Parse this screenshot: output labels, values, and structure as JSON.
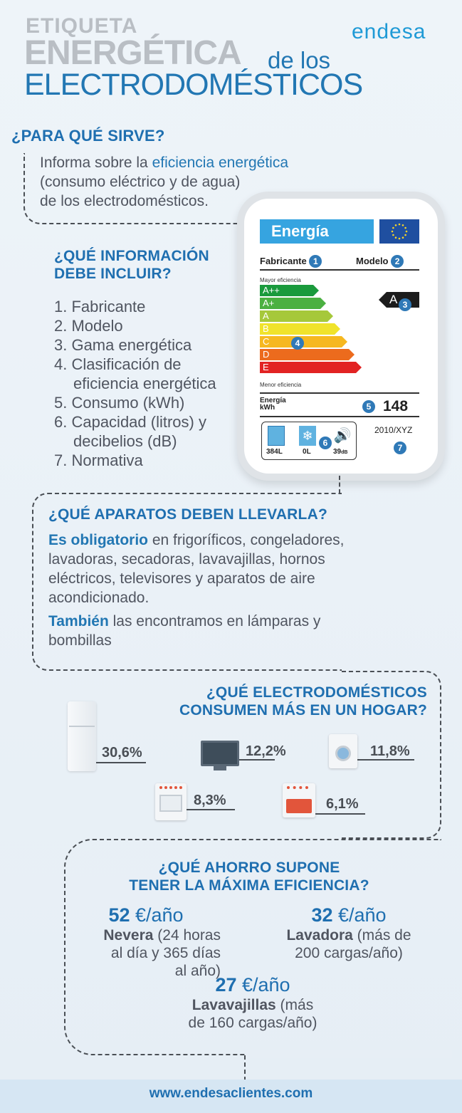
{
  "header": {
    "line1": "ETIQUETA",
    "line2": "ENERGÉTICA",
    "line2b": "de los",
    "line3": "ELECTRODOMÉSTICOS",
    "brand": "endesa"
  },
  "s1": {
    "title": "¿PARA QUÉ SIRVE?",
    "t1": "Informa sobre la ",
    "t1b": "eficiencia energética",
    "t2": "(consumo eléctrico y de agua)",
    "t3": "de los electrodomésticos."
  },
  "label": {
    "title": "Energía",
    "fabricante": "Fabricante",
    "modelo": "Modelo",
    "mayor": "Mayor eficiencia",
    "menor": "Menor eficiencia",
    "classes": [
      "A++",
      "A+",
      "A",
      "B",
      "C",
      "D",
      "E"
    ],
    "class_colors": [
      "#1a9a3c",
      "#4bb041",
      "#a6c83a",
      "#f0e32b",
      "#f6b820",
      "#ec6b1d",
      "#e22323"
    ],
    "rating": "A",
    "energia": "Energía",
    "kwh": "kWh",
    "consumo": "148",
    "norma": "2010/XYZ",
    "vol1": "384",
    "vol1u": "L",
    "vol2": "0",
    "vol2u": "L",
    "db": "39",
    "dbu": "dB",
    "n1": "1",
    "n2": "2",
    "n3": "3",
    "n4": "4",
    "n5": "5",
    "n6": "6",
    "n7": "7"
  },
  "s2": {
    "title1": "¿QUÉ INFORMACIÓN",
    "title2": "DEBE INCLUIR?",
    "items": [
      "1. Fabricante",
      "2. Modelo",
      "3. Gama energética",
      "4. Clasificación de",
      "eficiencia energética",
      "5. Consumo (kWh)",
      "6. Capacidad (litros) y",
      "decibelios (dB)",
      "7. Normativa"
    ]
  },
  "s3": {
    "title": "¿QUÉ APARATOS DEBEN LLEVARLA?",
    "p1b": "Es obligatorio",
    "p1a": " en frigoríficos, congeladores,",
    "p1c": "lavadoras, secadoras, lavavajillas, hornos",
    "p1d": "eléctricos, televisores y aparatos de aire",
    "p1e": "acondicionado.",
    "p2b": "También",
    "p2a": " las encontramos en lámparas y",
    "p2c": "bombillas"
  },
  "s4": {
    "title1": "¿QUÉ ELECTRODOMÉSTICOS",
    "title2": "CONSUMEN MÁS EN UN HOGAR?",
    "fridge": "30,6%",
    "tv": "12,2%",
    "washer": "11,8%",
    "oven": "8,3%",
    "dishwasher": "6,1%"
  },
  "s5": {
    "title1": "¿QUÉ AHORRO SUPONE",
    "title2": "TENER LA MÁXIMA EFICIENCIA?",
    "a_num": "52",
    "a_unit": " €/año",
    "a_b": "Nevera",
    "a_t1": " (24 horas",
    "a_t2": "al día y 365 días",
    "a_t3": "al año)",
    "b_num": "32",
    "b_unit": " €/año",
    "b_b": "Lavadora",
    "b_t1": " (más de",
    "b_t2": "200 cargas/año)",
    "c_num": "27",
    "c_unit": " €/año",
    "c_b": "Lavavajillas",
    "c_t1": " (más",
    "c_t2": "de 160 cargas/año)"
  },
  "footer": {
    "url": "www.endesaclientes.com"
  }
}
